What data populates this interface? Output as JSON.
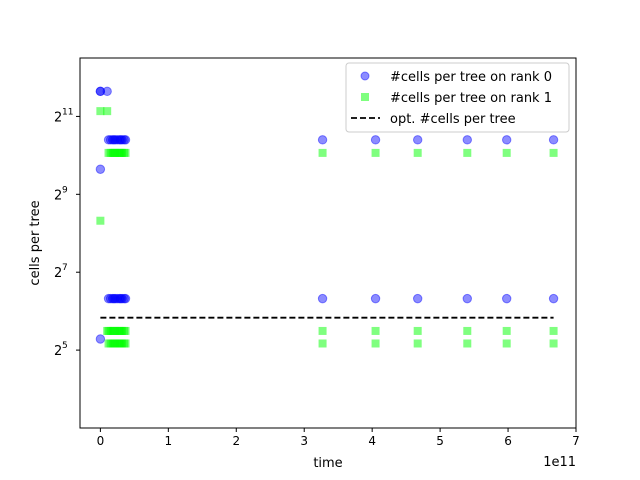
{
  "chart_data": {
    "type": "scatter",
    "xlabel": "time",
    "ylabel": "cells per tree",
    "x_offset_label": "1e11",
    "x_scale_factor": 100000000000.0,
    "xlim": [
      -0.3,
      7.0
    ],
    "ylim_log2": [
      3.0,
      12.5
    ],
    "y_scale": "log2",
    "x_ticks": [
      0,
      1,
      2,
      3,
      4,
      5,
      6,
      7
    ],
    "x_tick_labels": [
      "0",
      "1",
      "2",
      "3",
      "4",
      "5",
      "6",
      "7"
    ],
    "y_ticks_log2": [
      5,
      7,
      9,
      11
    ],
    "y_tick_labels": [
      {
        "base": "2",
        "exp": "5"
      },
      {
        "base": "2",
        "exp": "7"
      },
      {
        "base": "2",
        "exp": "9"
      },
      {
        "base": "2",
        "exp": "11"
      }
    ],
    "legend_position": "top-right",
    "series": [
      {
        "name": "#cells per tree on rank 0",
        "marker": "circle",
        "color": "#0000ff",
        "alpha": 0.45,
        "x": [
          0.0,
          0.0,
          0.0,
          0.0,
          0.1,
          0.12,
          0.15,
          0.18,
          0.2,
          0.22,
          0.25,
          0.28,
          0.3,
          0.32,
          0.35,
          0.37,
          0.12,
          0.15,
          0.18,
          0.2,
          0.22,
          0.25,
          0.28,
          0.3,
          0.32,
          0.35,
          0.37,
          3.27,
          4.05,
          4.67,
          5.4,
          5.98,
          6.67,
          3.27,
          4.05,
          4.67,
          5.4,
          5.98,
          6.67
        ],
        "y": [
          3200,
          3200,
          800,
          39,
          3200,
          1350,
          1350,
          1350,
          1350,
          1350,
          1350,
          1350,
          1350,
          1350,
          1350,
          1350,
          80,
          80,
          80,
          80,
          80,
          80,
          80,
          80,
          80,
          80,
          80,
          1350,
          1350,
          1350,
          1350,
          1350,
          1350,
          80,
          80,
          80,
          80,
          80,
          80
        ]
      },
      {
        "name": "#cells per tree on rank 1",
        "marker": "square",
        "color": "#00ff00",
        "alpha": 0.5,
        "x": [
          0.0,
          0.0,
          0.1,
          0.12,
          0.15,
          0.18,
          0.2,
          0.22,
          0.25,
          0.28,
          0.3,
          0.32,
          0.35,
          0.37,
          0.1,
          0.12,
          0.15,
          0.18,
          0.2,
          0.22,
          0.25,
          0.28,
          0.3,
          0.32,
          0.35,
          0.37,
          0.12,
          0.15,
          0.18,
          0.2,
          0.22,
          0.25,
          0.28,
          0.3,
          0.32,
          0.35,
          0.37,
          3.27,
          4.05,
          4.67,
          5.4,
          5.98,
          6.67,
          3.27,
          4.05,
          4.67,
          5.4,
          5.98,
          6.67,
          3.27,
          4.05,
          4.67,
          5.4,
          5.98,
          6.67
        ],
        "y": [
          2250,
          320,
          2250,
          1070,
          1070,
          1070,
          1070,
          1070,
          1070,
          1070,
          1070,
          1070,
          1070,
          1070,
          45,
          45,
          45,
          45,
          45,
          45,
          45,
          45,
          45,
          45,
          45,
          45,
          36,
          36,
          36,
          36,
          36,
          36,
          36,
          36,
          36,
          36,
          36,
          1070,
          1070,
          1070,
          1070,
          1070,
          1070,
          45,
          45,
          45,
          45,
          45,
          45,
          36,
          36,
          36,
          36,
          36,
          36
        ]
      },
      {
        "name": "opt. #cells per tree",
        "type": "line",
        "style": "dashed",
        "color": "#000000",
        "x": [
          0.0,
          6.67
        ],
        "y": [
          57,
          57
        ]
      }
    ]
  }
}
